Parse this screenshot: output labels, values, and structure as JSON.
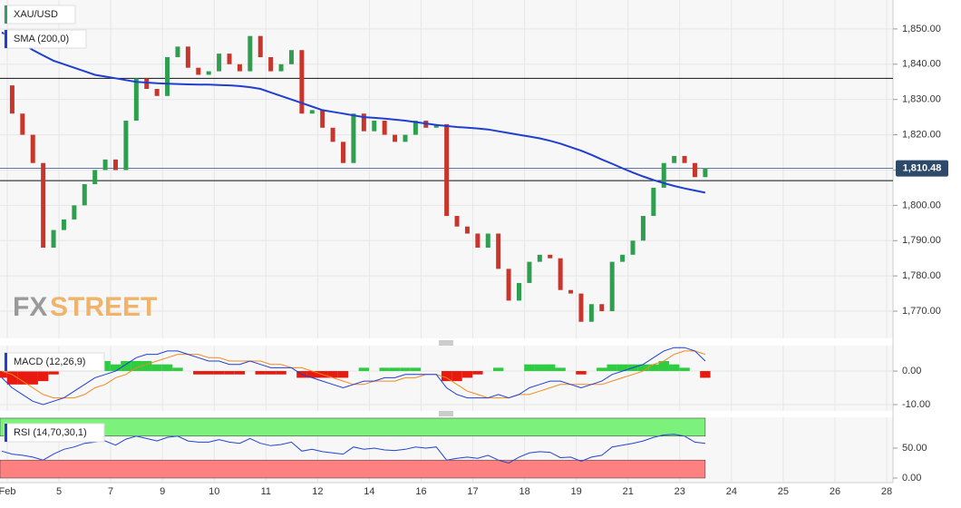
{
  "chart_data": [
    {
      "type": "candlestick",
      "legend": [
        "XAU/USD",
        "SMA (200,0)"
      ],
      "watermark_fx": "FX",
      "watermark_street": "STREET",
      "x_labels": [
        "Feb",
        "5",
        "7",
        "9",
        "10",
        "11",
        "12",
        "14",
        "16",
        "17",
        "18",
        "19",
        "21",
        "23",
        "24",
        "25",
        "26",
        "28"
      ],
      "ylim": [
        1762.3,
        1858.2
      ],
      "yticks": [
        {
          "value": 1770,
          "label": "1,770.00"
        },
        {
          "value": 1780,
          "label": "1,780.00"
        },
        {
          "value": 1790,
          "label": "1,790.00"
        },
        {
          "value": 1800,
          "label": "1,800.00"
        },
        {
          "value": 1810,
          "label": "1,810.00"
        },
        {
          "value": 1820,
          "label": "1,820.00"
        },
        {
          "value": 1830,
          "label": "1,830.00"
        },
        {
          "value": 1840,
          "label": "1,840.00"
        },
        {
          "value": 1850,
          "label": "1,850.00"
        }
      ],
      "grid": true,
      "up_color": "#2e9e4f",
      "down_color": "#c8352b",
      "closes": [
        1834,
        1826,
        1820,
        1812,
        1788,
        1793,
        1796,
        1800,
        1806,
        1810,
        1813,
        1810,
        1824,
        1836,
        1833,
        1831,
        1842,
        1845,
        1839,
        1837,
        1838,
        1843,
        1840,
        1838,
        1848,
        1842,
        1838,
        1840,
        1844,
        1826,
        1827,
        1822,
        1818,
        1812,
        1826,
        1821,
        1824,
        1820,
        1818,
        1820,
        1824,
        1822,
        1823,
        1797,
        1794,
        1792,
        1788,
        1792,
        1782,
        1773,
        1778,
        1784,
        1786,
        1785,
        1776,
        1775,
        1767,
        1772,
        1770,
        1784,
        1786,
        1790,
        1797,
        1805,
        1812,
        1814,
        1812,
        1808,
        1810.48
      ],
      "sma_color": "#1f3fd0",
      "sma": [
        1849,
        1847.5,
        1846,
        1844,
        1842.5,
        1841,
        1840,
        1839,
        1838,
        1837,
        1836.5,
        1836,
        1835.5,
        1835,
        1834.8,
        1834.6,
        1834.5,
        1834.4,
        1834.3,
        1834.2,
        1834.2,
        1834.1,
        1834,
        1833.8,
        1833.5,
        1833,
        1832,
        1831,
        1830,
        1829,
        1828,
        1827,
        1826.5,
        1826,
        1825.5,
        1825,
        1824.8,
        1824.6,
        1824.3,
        1824,
        1823.6,
        1823.2,
        1822.8,
        1822.5,
        1822.2,
        1822,
        1821.8,
        1821.5,
        1821,
        1820.5,
        1820,
        1819.5,
        1819,
        1818.3,
        1817.5,
        1816.5,
        1815.5,
        1814.3,
        1813,
        1811.8,
        1810.5,
        1809.3,
        1808.2,
        1807.2,
        1806.3,
        1805.5,
        1804.8,
        1804.2,
        1803.6
      ],
      "hlines": [
        1836,
        1807
      ],
      "last_price": 1810.48,
      "last_price_label": "1,810.48"
    },
    {
      "type": "macd",
      "legend": "MACD (12,26,9)",
      "ylim": [
        -11.9,
        7.6
      ],
      "yticks": [
        {
          "value": 0,
          "label": "0.00"
        },
        {
          "value": -10,
          "label": "-10.00"
        }
      ],
      "macd_color": "#1f3fd0",
      "signal_color": "#f28a1e",
      "pos_color": "#2ecc40",
      "neg_color": "#e8190e",
      "macd": [
        -2,
        -5,
        -7,
        -9,
        -10,
        -9,
        -8,
        -6,
        -4,
        -2,
        -1,
        0,
        2,
        4,
        5,
        5,
        6,
        6,
        5,
        4,
        3,
        3,
        2,
        2,
        3,
        2,
        1,
        1,
        1,
        -1,
        -2,
        -3,
        -4,
        -5,
        -4,
        -3,
        -3,
        -2,
        -2,
        -1,
        -1,
        -1,
        -1,
        -5,
        -7,
        -8,
        -8,
        -8,
        -7,
        -8,
        -7,
        -5,
        -4,
        -3,
        -3,
        -4,
        -5,
        -4,
        -3,
        -1,
        0,
        1,
        2,
        4,
        6,
        7,
        7,
        6,
        3
      ],
      "signal": [
        0,
        -1,
        -3,
        -5,
        -7,
        -8,
        -8,
        -8,
        -7,
        -5,
        -4,
        -2,
        -1,
        1,
        2,
        3,
        4,
        5,
        5,
        5,
        4,
        4,
        3,
        3,
        3,
        3,
        2,
        2,
        1,
        1,
        0,
        -1,
        -2,
        -3,
        -4,
        -4,
        -3,
        -3,
        -3,
        -2,
        -2,
        -1,
        -1,
        -2,
        -4,
        -6,
        -7,
        -8,
        -8,
        -8,
        -7,
        -7,
        -6,
        -5,
        -4,
        -4,
        -4,
        -4,
        -4,
        -3,
        -2,
        -1,
        0,
        2,
        3,
        5,
        6,
        6,
        5
      ],
      "hist": [
        -2,
        -4,
        -4,
        -4,
        -3,
        -1,
        0,
        2,
        3,
        3,
        3,
        2,
        3,
        3,
        3,
        2,
        2,
        1,
        0,
        -1,
        -1,
        -1,
        -1,
        -1,
        0,
        -1,
        -1,
        -1,
        0,
        -2,
        -2,
        -2,
        -2,
        -2,
        0,
        1,
        0,
        1,
        1,
        1,
        1,
        0,
        0,
        -3,
        -3,
        -2,
        -1,
        0,
        1,
        0,
        0,
        2,
        2,
        2,
        1,
        0,
        -1,
        0,
        1,
        2,
        2,
        2,
        2,
        2,
        3,
        2,
        1,
        0,
        -2
      ]
    },
    {
      "type": "rsi",
      "legend": "RSI (14,70,30,1)",
      "ylim": [
        -7.6,
        101.5
      ],
      "yticks": [
        {
          "value": 0,
          "label": "0.00"
        },
        {
          "value": 50,
          "label": "50.00"
        }
      ],
      "overbought": 70,
      "oversold": 30,
      "overbought_color": "#7cf27c",
      "oversold_color": "#ff8080",
      "color": "#2244cc",
      "values": [
        45,
        40,
        38,
        35,
        30,
        40,
        48,
        52,
        58,
        60,
        62,
        55,
        65,
        70,
        66,
        62,
        68,
        70,
        62,
        60,
        60,
        64,
        60,
        58,
        66,
        58,
        54,
        56,
        60,
        45,
        48,
        44,
        42,
        40,
        52,
        48,
        50,
        47,
        46,
        48,
        52,
        50,
        52,
        30,
        33,
        35,
        33,
        38,
        30,
        25,
        35,
        42,
        44,
        43,
        34,
        35,
        28,
        35,
        38,
        52,
        55,
        58,
        62,
        68,
        72,
        73,
        70,
        60,
        58
      ]
    }
  ]
}
